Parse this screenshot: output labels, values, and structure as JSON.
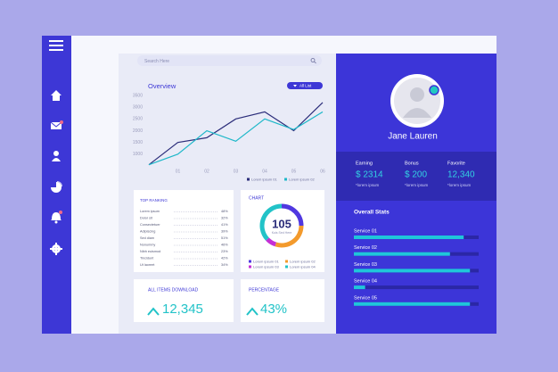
{
  "search": {
    "placeholder": "Search Here"
  },
  "chart_data": [
    {
      "type": "line",
      "title": "Overview",
      "filter_label": "All List",
      "x": [
        0,
        1,
        2,
        3,
        4,
        5,
        6
      ],
      "xlim": [
        0,
        6
      ],
      "xticks": [
        {
          "value": 1,
          "label": "01"
        },
        {
          "value": 2,
          "label": "02"
        },
        {
          "value": 3,
          "label": "03"
        },
        {
          "value": 4,
          "label": "04"
        },
        {
          "value": 5,
          "label": "05"
        },
        {
          "value": 6,
          "label": "06"
        }
      ],
      "ylim": [
        500,
        3500
      ],
      "yticks": [
        1000,
        1500,
        2000,
        2500,
        3000,
        3500
      ],
      "series": [
        {
          "name": "Lorem ipsum 01",
          "color": "#2b2d7a",
          "values": [
            550,
            1500,
            1700,
            2500,
            2800,
            2000,
            3200
          ]
        },
        {
          "name": "Lorem ipsum 02",
          "color": "#1fb8c9",
          "values": [
            550,
            1000,
            2000,
            1550,
            2500,
            2050,
            2800
          ]
        }
      ]
    },
    {
      "type": "donut",
      "title": "CHART",
      "total": 105,
      "subtitle": "Kuis Sed Here",
      "categories": [
        "Lorem ipsum 01",
        "Lorem ipsum 02",
        "Lorem ipsum 03",
        "Lorem ipsum 04"
      ],
      "colors": [
        "#5038e0",
        "#f39a2c",
        "#c52fd4",
        "#22c3c8"
      ],
      "values": [
        25,
        30,
        8,
        37
      ]
    },
    {
      "type": "progress",
      "title": "Overall Stats",
      "categories": [
        "Service  01",
        "Service  02",
        "Service  03",
        "Service  04",
        "Service  05"
      ],
      "values": [
        88,
        77,
        93,
        9,
        93
      ],
      "xlim": [
        0,
        100
      ],
      "color": "#1fc6da",
      "track_color": "#2b27a6"
    }
  ],
  "ranking": {
    "title": "TOP RANKING",
    "rows": [
      [
        "Lorem ipsum",
        "48%"
      ],
      [
        "Dolor sit",
        "32%"
      ],
      [
        "Consectetuer",
        "41%"
      ],
      [
        "Adipiscing",
        "39%"
      ],
      [
        "Sed diam",
        "51%"
      ],
      [
        "Nonummy",
        "46%"
      ],
      [
        "Nibh euismod",
        "23%"
      ],
      [
        "Tincidunt",
        "42%"
      ],
      [
        "Ut laoreet",
        "34%"
      ]
    ]
  },
  "downloads": {
    "title": "ALL ITEMS DOWNLOAD",
    "value": "12,345"
  },
  "percentage": {
    "title": "PERCENTAGE",
    "value": "43%"
  },
  "profile": {
    "name": "Jane Lauren",
    "stats": [
      {
        "label": "Earning",
        "value": "$ 2314",
        "note": "*lorem ipsum"
      },
      {
        "label": "Bonus",
        "value": "$ 200",
        "note": "*lorem ipsum"
      },
      {
        "label": "Favorite",
        "value": "12,340",
        "note": "*lorem ipsum"
      }
    ]
  }
}
